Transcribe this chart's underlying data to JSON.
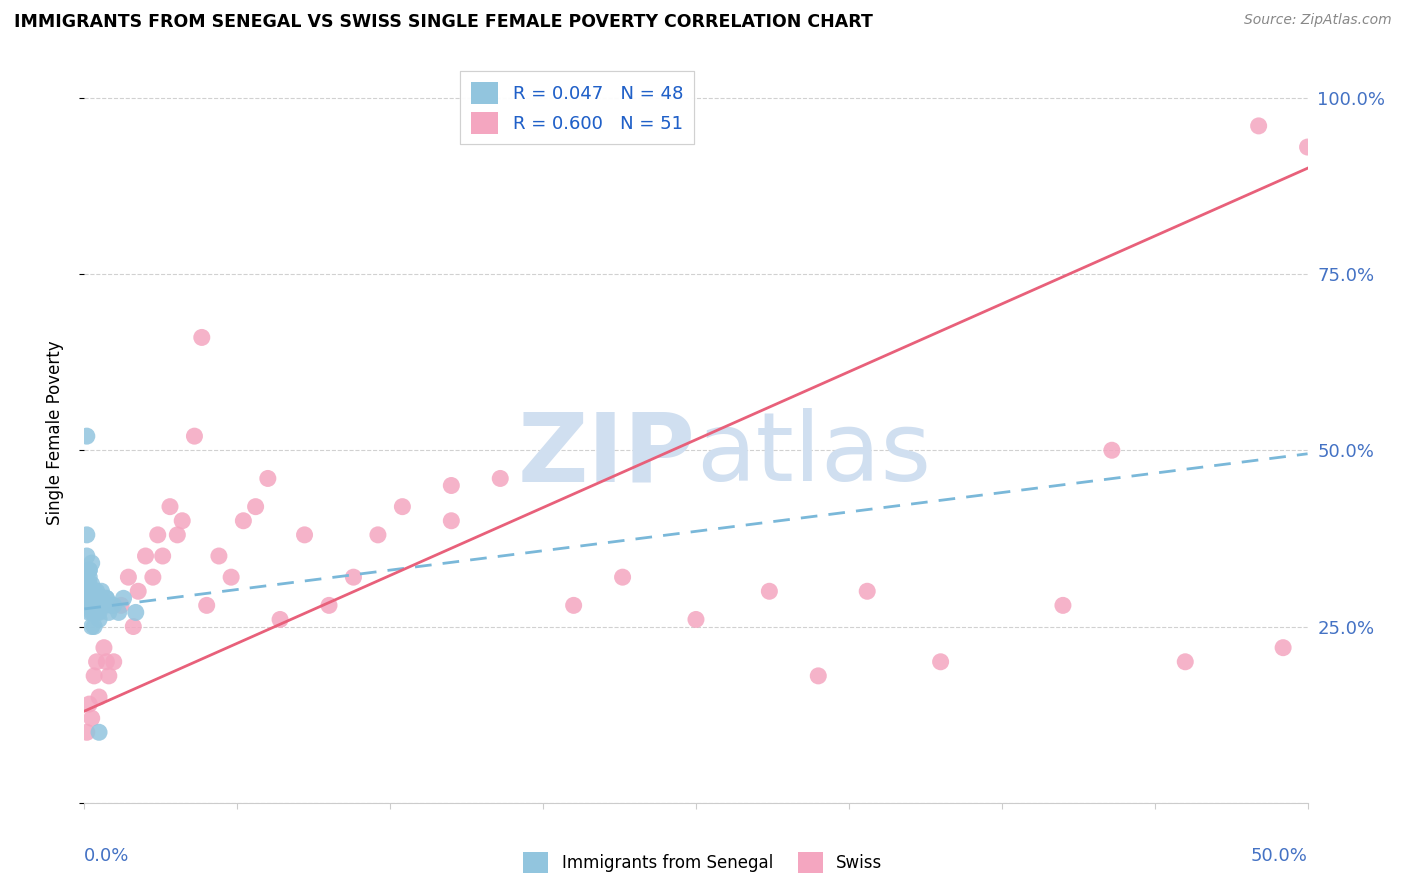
{
  "title": "IMMIGRANTS FROM SENEGAL VS SWISS SINGLE FEMALE POVERTY CORRELATION CHART",
  "source": "Source: ZipAtlas.com",
  "ylabel": "Single Female Poverty",
  "legend_blue_label": "R = 0.047   N = 48",
  "legend_pink_label": "R = 0.600   N = 51",
  "legend_bottom_blue": "Immigrants from Senegal",
  "legend_bottom_pink": "Swiss",
  "blue_color": "#92c5de",
  "pink_color": "#f4a6c0",
  "blue_line_color": "#7ab8d9",
  "pink_line_color": "#e8607a",
  "background_color": "#ffffff",
  "watermark_color": "#d0dff0",
  "blue_line_x0": 0.0,
  "blue_line_y0": 0.275,
  "blue_line_x1": 0.5,
  "blue_line_y1": 0.495,
  "pink_line_x0": 0.0,
  "pink_line_y0": 0.13,
  "pink_line_x1": 0.5,
  "pink_line_y1": 0.9,
  "blue_scatter_x": [
    0.001,
    0.001,
    0.001,
    0.001,
    0.002,
    0.002,
    0.002,
    0.002,
    0.002,
    0.002,
    0.003,
    0.003,
    0.003,
    0.003,
    0.003,
    0.004,
    0.004,
    0.004,
    0.004,
    0.004,
    0.005,
    0.005,
    0.005,
    0.005,
    0.006,
    0.006,
    0.006,
    0.007,
    0.007,
    0.008,
    0.009,
    0.01,
    0.011,
    0.012,
    0.014,
    0.016,
    0.001,
    0.001,
    0.002,
    0.002,
    0.003,
    0.003,
    0.004,
    0.005,
    0.007,
    0.009,
    0.021,
    0.006
  ],
  "blue_scatter_y": [
    0.28,
    0.3,
    0.32,
    0.52,
    0.27,
    0.29,
    0.3,
    0.31,
    0.33,
    0.29,
    0.27,
    0.28,
    0.29,
    0.31,
    0.3,
    0.27,
    0.28,
    0.29,
    0.3,
    0.25,
    0.27,
    0.28,
    0.29,
    0.3,
    0.26,
    0.27,
    0.28,
    0.29,
    0.3,
    0.28,
    0.29,
    0.27,
    0.28,
    0.28,
    0.27,
    0.29,
    0.35,
    0.38,
    0.32,
    0.33,
    0.34,
    0.25,
    0.27,
    0.28,
    0.29,
    0.29,
    0.27,
    0.1
  ],
  "pink_scatter_x": [
    0.001,
    0.002,
    0.003,
    0.004,
    0.005,
    0.006,
    0.008,
    0.009,
    0.01,
    0.012,
    0.015,
    0.018,
    0.02,
    0.022,
    0.025,
    0.028,
    0.03,
    0.032,
    0.035,
    0.038,
    0.04,
    0.045,
    0.048,
    0.05,
    0.055,
    0.06,
    0.065,
    0.07,
    0.075,
    0.08,
    0.09,
    0.1,
    0.11,
    0.12,
    0.13,
    0.15,
    0.17,
    0.2,
    0.22,
    0.25,
    0.28,
    0.3,
    0.35,
    0.4,
    0.42,
    0.45,
    0.48,
    0.49,
    0.5,
    0.32,
    0.15
  ],
  "pink_scatter_y": [
    0.1,
    0.14,
    0.12,
    0.18,
    0.2,
    0.15,
    0.22,
    0.2,
    0.18,
    0.2,
    0.28,
    0.32,
    0.25,
    0.3,
    0.35,
    0.32,
    0.38,
    0.35,
    0.42,
    0.38,
    0.4,
    0.52,
    0.66,
    0.28,
    0.35,
    0.32,
    0.4,
    0.42,
    0.46,
    0.26,
    0.38,
    0.28,
    0.32,
    0.38,
    0.42,
    0.4,
    0.46,
    0.28,
    0.32,
    0.26,
    0.3,
    0.18,
    0.2,
    0.28,
    0.5,
    0.2,
    0.96,
    0.22,
    0.93,
    0.3,
    0.45
  ],
  "xlim": [
    0.0,
    0.5
  ],
  "ylim": [
    0.0,
    1.05
  ]
}
